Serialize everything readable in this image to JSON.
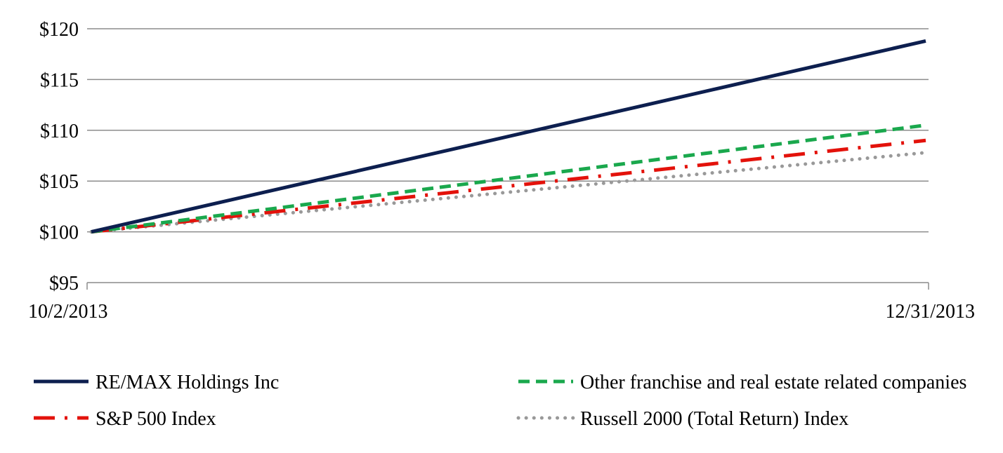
{
  "chart_data": {
    "type": "line",
    "title": "",
    "xlabel": "",
    "ylabel": "",
    "x": [
      "10/2/2013",
      "12/31/2013"
    ],
    "ylim": [
      95,
      120
    ],
    "yticks": [
      95,
      100,
      105,
      110,
      115,
      120
    ],
    "ytick_labels": [
      "$95",
      "$100",
      "$105",
      "$110",
      "$115",
      "$120"
    ],
    "xtick_labels": [
      "10/2/2013",
      "12/31/2013"
    ],
    "grid": "horizontal",
    "legend_position": "bottom",
    "series": [
      {
        "name": "RE/MAX Holdings Inc",
        "values": [
          100,
          118.8
        ],
        "color": "#0d1f4f",
        "style": "solid"
      },
      {
        "name": "Other franchise and real estate related companies",
        "values": [
          100,
          110.5
        ],
        "color": "#1aa84d",
        "style": "dashed"
      },
      {
        "name": "S&P 500 Index",
        "values": [
          100,
          109.0
        ],
        "color": "#e3120b",
        "style": "dash-dot"
      },
      {
        "name": "Russell 2000 (Total Return) Index",
        "values": [
          100,
          107.8
        ],
        "color": "#999999",
        "style": "dotted"
      }
    ]
  }
}
